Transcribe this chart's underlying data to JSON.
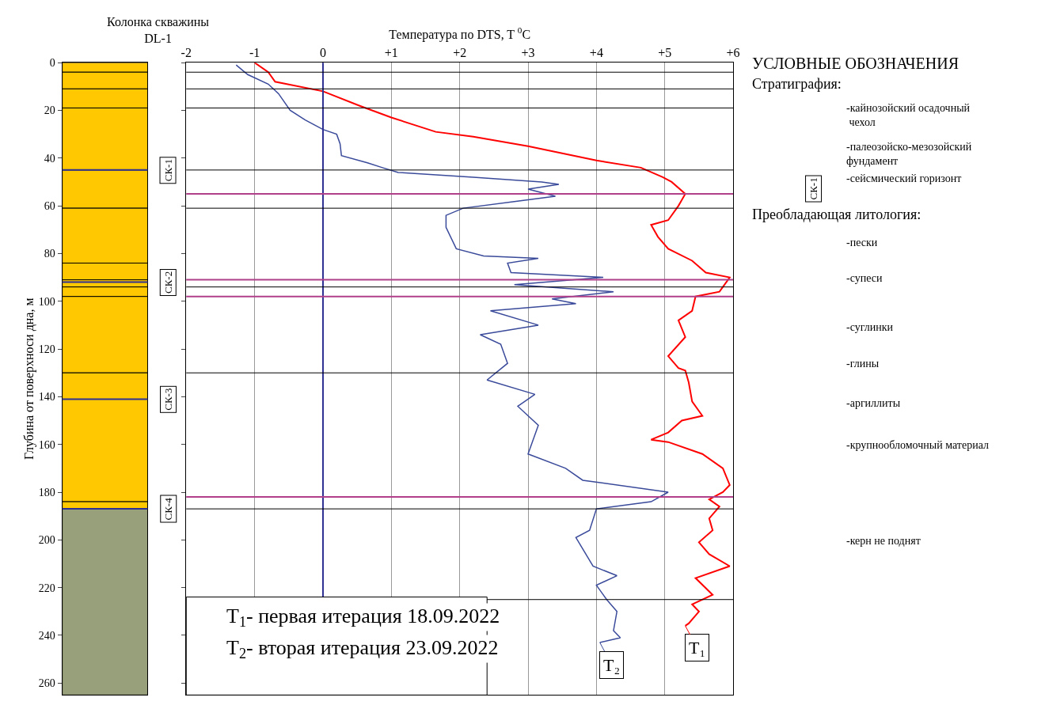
{
  "chart_data": [
    {
      "type": "bar",
      "title": "Колонка скважины DL-1",
      "ylabel": "Глубина от поверхноси дна, м",
      "stacked": true,
      "categories": [
        null
      ],
      "legend": false,
      "tick_labels": "y",
      "ylim": [
        265,
        0
      ],
      "yticks": [
        0,
        20,
        40,
        60,
        80,
        100,
        120,
        140,
        160,
        180,
        200,
        220,
        240,
        260
      ],
      "series": [
        {
          "color": "#ffc800",
          "values": [
            4
          ]
        },
        {
          "color": "#ffc800",
          "values": [
            7
          ]
        },
        {
          "color": "#ffc800",
          "values": [
            8
          ]
        },
        {
          "color": "#ffc800",
          "values": [
            26
          ]
        },
        {
          "color": "#ffc800",
          "values": [
            16
          ]
        },
        {
          "color": "#ffc800",
          "values": [
            23
          ]
        },
        {
          "color": "#ffc800",
          "values": [
            7
          ]
        },
        {
          "color": "#ffc800",
          "values": [
            3
          ]
        },
        {
          "color": "#ffc800",
          "values": [
            4
          ]
        },
        {
          "color": "#ffc800",
          "values": [
            32
          ]
        },
        {
          "color": "#ffc800",
          "values": [
            54
          ]
        },
        {
          "color": "#ffc800",
          "values": [
            3
          ]
        },
        {
          "color": "#97a07a",
          "values": [
            78
          ]
        }
      ],
      "ref_lines": [
        {
          "axis": "y",
          "value": 45,
          "color": "#2e3192"
        },
        {
          "axis": "y",
          "value": 92,
          "color": "#2e3192"
        },
        {
          "axis": "y",
          "value": 141,
          "color": "#2e3192"
        },
        {
          "axis": "y",
          "value": 187,
          "color": "#2e3192"
        }
      ],
      "annotations": [
        "СК-1",
        "СК-2",
        "СК-3",
        "СК-4",
        "УСЛОВНЫЕ ОБОЗНАЧЕНИЯ",
        "Стратиграфия:",
        "-кайнозойский осадочный чехол",
        "-палеозойско-мезозойский фундамент",
        "СК-1",
        "-сейсмический горизонт",
        "Преобладающая литология:",
        "-пески",
        "-супеси",
        "-суглинки",
        "-глины",
        "-аргиллиты",
        "-крупнообломочный материал",
        "-керн не поднят"
      ]
    },
    {
      "type": "line",
      "xlabel": "Температура по DTS, T $^{0}$C",
      "grid": "x",
      "legend": "bottom right",
      "tick_labels": "x",
      "xlim": [
        -2,
        6
      ],
      "xticks": [
        -2,
        -1,
        0,
        {
          "value": 1,
          "label": "+1"
        },
        {
          "value": 2,
          "label": "+2"
        },
        {
          "value": 3,
          "label": "+3"
        },
        {
          "value": 4,
          "label": "+4"
        },
        {
          "value": 5,
          "label": "+5"
        },
        {
          "value": 6,
          "label": "+6"
        }
      ],
      "ylim": [
        265,
        0
      ],
      "yticks": [
        0,
        20,
        40,
        60,
        80,
        100,
        120,
        140,
        160,
        180,
        200,
        220,
        240,
        260
      ],
      "series": [
        {
          "name": "T₁",
          "color": "#ff0000",
          "x": [
            -1,
            -0.8,
            -0.7,
            0,
            0.53,
            1,
            1.65,
            2.2,
            3,
            4,
            4.65,
            4.97,
            5.1,
            5.3,
            5.2,
            5.05,
            4.8,
            4.9,
            5.05,
            5.4,
            5.6,
            5.95,
            5.8,
            5.45,
            5.4,
            5.2,
            5.3,
            5.05,
            5.2,
            5.3,
            5.35,
            5.4,
            5.55,
            5.25,
            5.05,
            4.8,
            5.05,
            5.55,
            5.85,
            5.95,
            5.85,
            5.65,
            5.8,
            5.65,
            5.7,
            5.5,
            5.65,
            5.95,
            5.45,
            5.7,
            5.4,
            5.5,
            5.35,
            5.3
          ],
          "values": [
            0,
            4,
            8,
            12,
            18,
            23,
            29,
            31,
            35,
            41,
            44,
            48,
            50,
            55,
            60,
            66,
            68,
            73,
            78,
            83,
            88,
            90,
            96,
            98,
            104,
            108,
            115,
            123,
            128,
            129,
            134,
            142,
            148,
            150,
            155,
            158,
            159,
            164,
            170,
            177,
            180,
            183,
            186,
            191,
            196,
            201,
            206,
            211,
            216,
            223,
            227,
            230,
            235,
            236
          ]
        },
        {
          "name": "T₂",
          "color": "#3a4a9a",
          "x": [
            -1.27,
            -1.1,
            -0.8,
            -0.65,
            -0.48,
            -0.26,
            0,
            0.2,
            0.25,
            0.27,
            0.65,
            0.87,
            1.1,
            2.2,
            3.2,
            3.45,
            3,
            3.4,
            2.05,
            1.8,
            1.8,
            1.95,
            2.35,
            3.15,
            2.7,
            2.75,
            4.1,
            2.8,
            4.25,
            3.35,
            3.7,
            2.45,
            3.15,
            2.3,
            2.6,
            2.7,
            2.4,
            3.1,
            2.85,
            3.15,
            3,
            3.55,
            3.8,
            5.05,
            4.8,
            4,
            3.9,
            3.7,
            3.95,
            4.3,
            4,
            4.15,
            4.3,
            4.25,
            4.35,
            4.05
          ],
          "values": [
            1,
            5,
            9,
            13,
            20,
            24,
            28,
            30,
            34,
            39,
            42,
            44,
            46,
            48,
            50,
            51,
            53,
            56,
            61,
            64,
            69,
            78,
            81,
            82,
            84,
            88,
            90,
            93,
            96,
            99,
            101,
            104,
            110,
            114,
            118,
            126,
            133,
            139,
            144,
            152,
            164,
            170,
            175,
            180,
            184,
            187,
            196,
            199,
            211,
            215,
            219,
            225,
            230,
            238,
            241,
            243
          ]
        }
      ],
      "ref_lines": [
        {
          "axis": "x",
          "value": 0,
          "color": "#2e3192"
        },
        {
          "axis": "y",
          "value": 4,
          "color": "#000000"
        },
        {
          "axis": "y",
          "value": 11,
          "color": "#000000"
        },
        {
          "axis": "y",
          "value": 19,
          "color": "#000000"
        },
        {
          "axis": "y",
          "value": 45,
          "color": "#000000"
        },
        {
          "axis": "y",
          "value": 61,
          "color": "#000000"
        },
        {
          "axis": "y",
          "value": 94,
          "color": "#000000"
        },
        {
          "axis": "y",
          "value": 130,
          "color": "#000000"
        },
        {
          "axis": "y",
          "value": 187,
          "color": "#000000"
        },
        {
          "axis": "y",
          "value": 225,
          "color": "#000000"
        },
        {
          "axis": "y",
          "value": 55,
          "color": "#b0408a"
        },
        {
          "axis": "y",
          "value": 91,
          "color": "#b0408a"
        },
        {
          "axis": "y",
          "value": 98,
          "color": "#b0408a"
        },
        {
          "axis": "y",
          "value": 182,
          "color": "#b0408a"
        }
      ],
      "annotations": [
        "T$_{1}$- первая итерация 18.09.2022",
        "T$_{2}$- вторая итерация 23.09.2022"
      ]
    }
  ]
}
